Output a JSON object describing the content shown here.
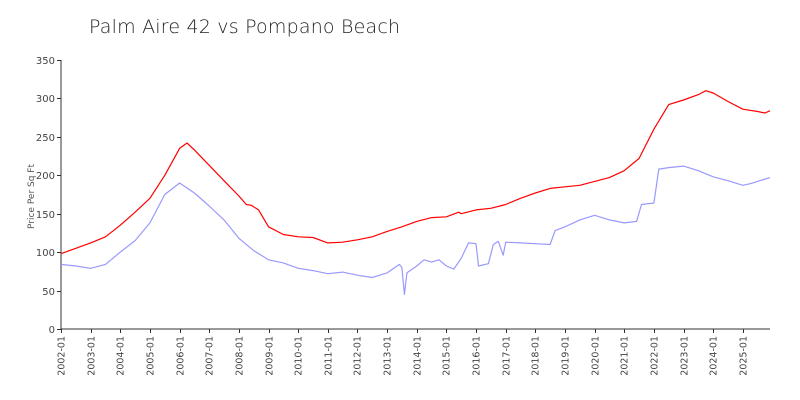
{
  "chart_data": {
    "type": "line",
    "title": "Palm Aire 42 vs Pompano Beach",
    "xlabel": "",
    "ylabel": "Price Per Sq Ft",
    "ylim": [
      0,
      350
    ],
    "yticks": [
      0,
      50,
      100,
      150,
      200,
      250,
      300,
      350
    ],
    "xlim": [
      "2002-01",
      "2025-12"
    ],
    "xticks": [
      "2002-01",
      "2003-01",
      "2004-01",
      "2005-01",
      "2006-01",
      "2007-01",
      "2008-01",
      "2009-01",
      "2010-01",
      "2011-01",
      "2012-01",
      "2013-01",
      "2014-01",
      "2015-01",
      "2016-01",
      "2017-01",
      "2018-01",
      "2019-01",
      "2020-01",
      "2021-01",
      "2022-01",
      "2023-01",
      "2024-01",
      "2025-01"
    ],
    "grid": false,
    "legend": "none",
    "series": [
      {
        "color": "#ff0000",
        "points": [
          [
            "2002-01",
            98
          ],
          [
            "2002-07",
            105
          ],
          [
            "2003-01",
            112
          ],
          [
            "2003-07",
            120
          ],
          [
            "2004-01",
            135
          ],
          [
            "2004-07",
            152
          ],
          [
            "2005-01",
            170
          ],
          [
            "2005-07",
            200
          ],
          [
            "2006-01",
            235
          ],
          [
            "2006-04",
            242
          ],
          [
            "2006-07",
            233
          ],
          [
            "2007-01",
            213
          ],
          [
            "2007-07",
            193
          ],
          [
            "2008-01",
            173
          ],
          [
            "2008-04",
            162
          ],
          [
            "2008-06",
            161
          ],
          [
            "2008-09",
            155
          ],
          [
            "2009-01",
            133
          ],
          [
            "2009-07",
            123
          ],
          [
            "2010-01",
            120
          ],
          [
            "2010-07",
            119
          ],
          [
            "2011-01",
            112
          ],
          [
            "2011-07",
            113
          ],
          [
            "2012-01",
            116
          ],
          [
            "2012-07",
            120
          ],
          [
            "2013-01",
            127
          ],
          [
            "2013-07",
            133
          ],
          [
            "2014-01",
            140
          ],
          [
            "2014-07",
            145
          ],
          [
            "2015-01",
            146
          ],
          [
            "2015-06",
            152
          ],
          [
            "2015-07",
            150
          ],
          [
            "2016-01",
            155
          ],
          [
            "2016-07",
            157
          ],
          [
            "2017-01",
            162
          ],
          [
            "2017-07",
            170
          ],
          [
            "2018-01",
            177
          ],
          [
            "2018-07",
            183
          ],
          [
            "2019-01",
            185
          ],
          [
            "2019-07",
            187
          ],
          [
            "2020-01",
            192
          ],
          [
            "2020-07",
            197
          ],
          [
            "2021-01",
            206
          ],
          [
            "2021-07",
            222
          ],
          [
            "2022-01",
            260
          ],
          [
            "2022-07",
            292
          ],
          [
            "2023-01",
            298
          ],
          [
            "2023-07",
            305
          ],
          [
            "2023-10",
            310
          ],
          [
            "2024-01",
            307
          ],
          [
            "2024-07",
            296
          ],
          [
            "2025-01",
            286
          ],
          [
            "2025-07",
            283
          ],
          [
            "2025-10",
            281
          ],
          [
            "2025-12",
            284
          ]
        ]
      },
      {
        "color": "#9999ff",
        "points": [
          [
            "2002-01",
            84
          ],
          [
            "2002-07",
            82
          ],
          [
            "2003-01",
            79
          ],
          [
            "2003-07",
            84
          ],
          [
            "2004-01",
            100
          ],
          [
            "2004-07",
            115
          ],
          [
            "2005-01",
            138
          ],
          [
            "2005-07",
            175
          ],
          [
            "2006-01",
            190
          ],
          [
            "2006-07",
            177
          ],
          [
            "2007-01",
            160
          ],
          [
            "2007-07",
            142
          ],
          [
            "2008-01",
            118
          ],
          [
            "2008-07",
            102
          ],
          [
            "2009-01",
            90
          ],
          [
            "2009-07",
            86
          ],
          [
            "2010-01",
            79
          ],
          [
            "2010-07",
            76
          ],
          [
            "2011-01",
            72
          ],
          [
            "2011-07",
            74
          ],
          [
            "2012-01",
            70
          ],
          [
            "2012-07",
            67
          ],
          [
            "2013-01",
            73
          ],
          [
            "2013-06",
            84
          ],
          [
            "2013-07",
            80
          ],
          [
            "2013-08",
            45
          ],
          [
            "2013-09",
            73
          ],
          [
            "2014-01",
            82
          ],
          [
            "2014-04",
            90
          ],
          [
            "2014-07",
            87
          ],
          [
            "2014-10",
            90
          ],
          [
            "2015-01",
            82
          ],
          [
            "2015-04",
            78
          ],
          [
            "2015-07",
            92
          ],
          [
            "2015-10",
            112
          ],
          [
            "2016-01",
            111
          ],
          [
            "2016-02",
            82
          ],
          [
            "2016-06",
            85
          ],
          [
            "2016-08",
            110
          ],
          [
            "2016-10",
            114
          ],
          [
            "2016-12",
            96
          ],
          [
            "2017-01",
            113
          ],
          [
            "2017-07",
            112
          ],
          [
            "2018-01",
            111
          ],
          [
            "2018-07",
            110
          ],
          [
            "2018-09",
            128
          ],
          [
            "2019-01",
            133
          ],
          [
            "2019-07",
            142
          ],
          [
            "2020-01",
            148
          ],
          [
            "2020-07",
            142
          ],
          [
            "2021-01",
            138
          ],
          [
            "2021-06",
            140
          ],
          [
            "2021-08",
            162
          ],
          [
            "2022-01",
            164
          ],
          [
            "2022-03",
            208
          ],
          [
            "2022-07",
            210
          ],
          [
            "2023-01",
            212
          ],
          [
            "2023-07",
            206
          ],
          [
            "2024-01",
            198
          ],
          [
            "2024-07",
            193
          ],
          [
            "2025-01",
            187
          ],
          [
            "2025-04",
            189
          ],
          [
            "2025-12",
            197
          ]
        ]
      }
    ]
  }
}
